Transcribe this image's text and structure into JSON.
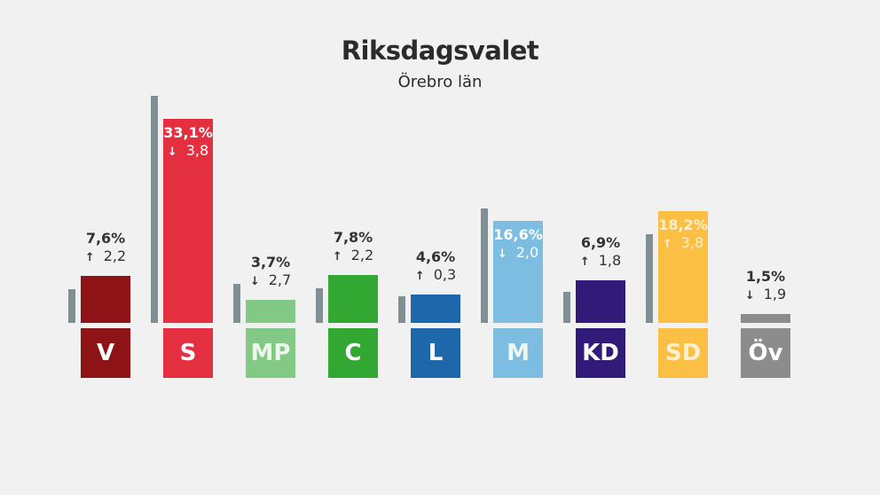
{
  "chart_data": {
    "type": "bar",
    "title": "Riksdagsvalet",
    "subtitle": "Örebro län",
    "categories": [
      "V",
      "S",
      "MP",
      "C",
      "L",
      "M",
      "KD",
      "SD",
      "Öv"
    ],
    "values": [
      7.6,
      33.1,
      3.7,
      7.8,
      4.6,
      16.6,
      6.9,
      18.2,
      1.5
    ],
    "value_labels": [
      "7,6%",
      "33,1%",
      "3,7%",
      "7,8%",
      "4,6%",
      "16,6%",
      "6,9%",
      "18,2%",
      "1,5%"
    ],
    "change_direction": [
      "up",
      "down",
      "down",
      "up",
      "up",
      "down",
      "up",
      "up",
      "down"
    ],
    "change_labels": [
      "2,2",
      "3,8",
      "2,7",
      "2,2",
      "0,3",
      "2,0",
      "1,8",
      "3,8",
      "1,9"
    ],
    "previous_values": [
      5.4,
      36.9,
      6.4,
      5.6,
      4.3,
      18.6,
      5.1,
      14.4,
      null
    ],
    "colors": [
      "#8e1317",
      "#e32f40",
      "#83c986",
      "#32a832",
      "#1f67ab",
      "#7dbde1",
      "#311a78",
      "#fbbf44",
      "#8c8c8c"
    ],
    "previous_color": "#7f8f94",
    "ylim": [
      0,
      37
    ]
  }
}
